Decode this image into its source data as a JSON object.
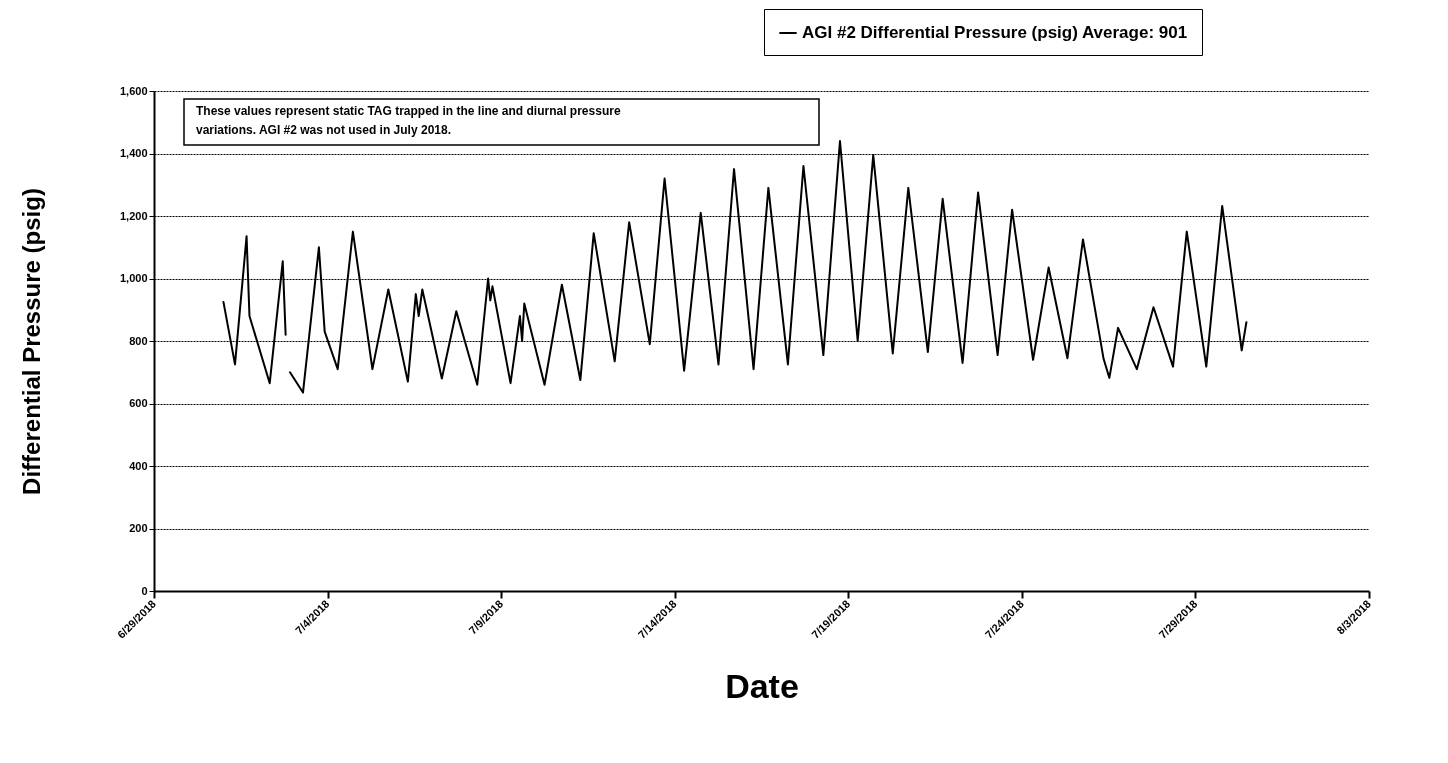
{
  "chart_data": {
    "type": "line",
    "xlabel": "Date",
    "ylabel": "Differential Pressure (psig)",
    "annotations": [
      "These values represent static TAG trapped in the line and diurnal pressure variations.  AGI #2 was not used in July  2018."
    ],
    "x": [
      "2018-07-01T00:00",
      "2018-07-01T08:00",
      "2018-07-01T16:00",
      "2018-07-01T18:00",
      "2018-07-02T08:00",
      "2018-07-02T17:00",
      "2018-07-02T19:00",
      "2018-07-02T20:30",
      "2018-07-02T22:00",
      "2018-07-03T07:00",
      "2018-07-03T18:00",
      "2018-07-03T22:00",
      "2018-07-04T07:00",
      "2018-07-04T17:30",
      "2018-07-05T07:00",
      "2018-07-05T18:00",
      "2018-07-06T07:30",
      "2018-07-06T13:00",
      "2018-07-06T15:00",
      "2018-07-06T17:30",
      "2018-07-07T07:00",
      "2018-07-07T17:00",
      "2018-07-08T07:30",
      "2018-07-08T15:00",
      "2018-07-08T16:30",
      "2018-07-08T18:00",
      "2018-07-09T06:30",
      "2018-07-09T13:00",
      "2018-07-09T14:30",
      "2018-07-09T16:00",
      "2018-07-10T06:00",
      "2018-07-10T18:00",
      "2018-07-11T06:45",
      "2018-07-11T16:00",
      "2018-07-12T06:30",
      "2018-07-12T16:30",
      "2018-07-13T06:45",
      "2018-07-13T17:00",
      "2018-07-14T06:30",
      "2018-07-14T18:00",
      "2018-07-15T06:15",
      "2018-07-15T17:00",
      "2018-07-16T06:30",
      "2018-07-16T16:45",
      "2018-07-17T06:15",
      "2018-07-17T17:00",
      "2018-07-18T06:45",
      "2018-07-18T18:15",
      "2018-07-19T06:30",
      "2018-07-19T17:15",
      "2018-07-20T06:45",
      "2018-07-20T17:30",
      "2018-07-21T07:00",
      "2018-07-21T17:15",
      "2018-07-22T07:00",
      "2018-07-22T17:45",
      "2018-07-23T07:15",
      "2018-07-23T17:15",
      "2018-07-24T07:45",
      "2018-07-24T18:30",
      "2018-07-25T07:30",
      "2018-07-25T18:15",
      "2018-07-26T08:30",
      "2018-07-26T12:30",
      "2018-07-26T18:30",
      "2018-07-27T07:30",
      "2018-07-27T19:00",
      "2018-07-28T08:30",
      "2018-07-28T18:00",
      "2018-07-29T07:30",
      "2018-07-29T18:30",
      "2018-07-30T08:00",
      "2018-07-30T11:15"
    ],
    "series": [
      {
        "name": "AGI #2 Differential Pressure (psig) Average: 901",
        "color": "#000000",
        "values": [
          925,
          725,
          1135,
          880,
          665,
          1055,
          820,
          null,
          700,
          635,
          1100,
          830,
          710,
          1150,
          710,
          965,
          670,
          950,
          880,
          965,
          680,
          895,
          660,
          1000,
          930,
          975,
          665,
          880,
          800,
          920,
          660,
          980,
          675,
          1145,
          735,
          1180,
          790,
          1320,
          705,
          1210,
          725,
          1350,
          710,
          1290,
          725,
          1360,
          755,
          1440,
          800,
          1395,
          760,
          1290,
          765,
          1255,
          730,
          1275,
          755,
          1220,
          740,
          1035,
          745,
          1125,
          743,
          682,
          842,
          710,
          908,
          718,
          1150,
          718,
          1232,
          770,
          860
        ]
      }
    ],
    "xlim": [
      "2018-06-29",
      "2018-08-03"
    ],
    "xticks": [
      {
        "value": "2018-06-29",
        "label": "6/29/2018"
      },
      {
        "value": "2018-07-04",
        "label": "7/4/2018"
      },
      {
        "value": "2018-07-09",
        "label": "7/9/2018"
      },
      {
        "value": "2018-07-14",
        "label": "7/14/2018"
      },
      {
        "value": "2018-07-19",
        "label": "7/19/2018"
      },
      {
        "value": "2018-07-24",
        "label": "7/24/2018"
      },
      {
        "value": "2018-07-29",
        "label": "7/29/2018"
      },
      {
        "value": "2018-08-03",
        "label": "8/3/2018"
      }
    ],
    "ylim": [
      0,
      1600
    ],
    "yticks": [
      0,
      200,
      400,
      600,
      800,
      {
        "value": 1000,
        "label": "1,000"
      },
      {
        "value": 1200,
        "label": "1,200"
      },
      {
        "value": 1400,
        "label": "1,400"
      },
      {
        "value": 1600,
        "label": "1,600"
      }
    ],
    "grid": "y",
    "legend": "top right",
    "line_style": "solid"
  }
}
